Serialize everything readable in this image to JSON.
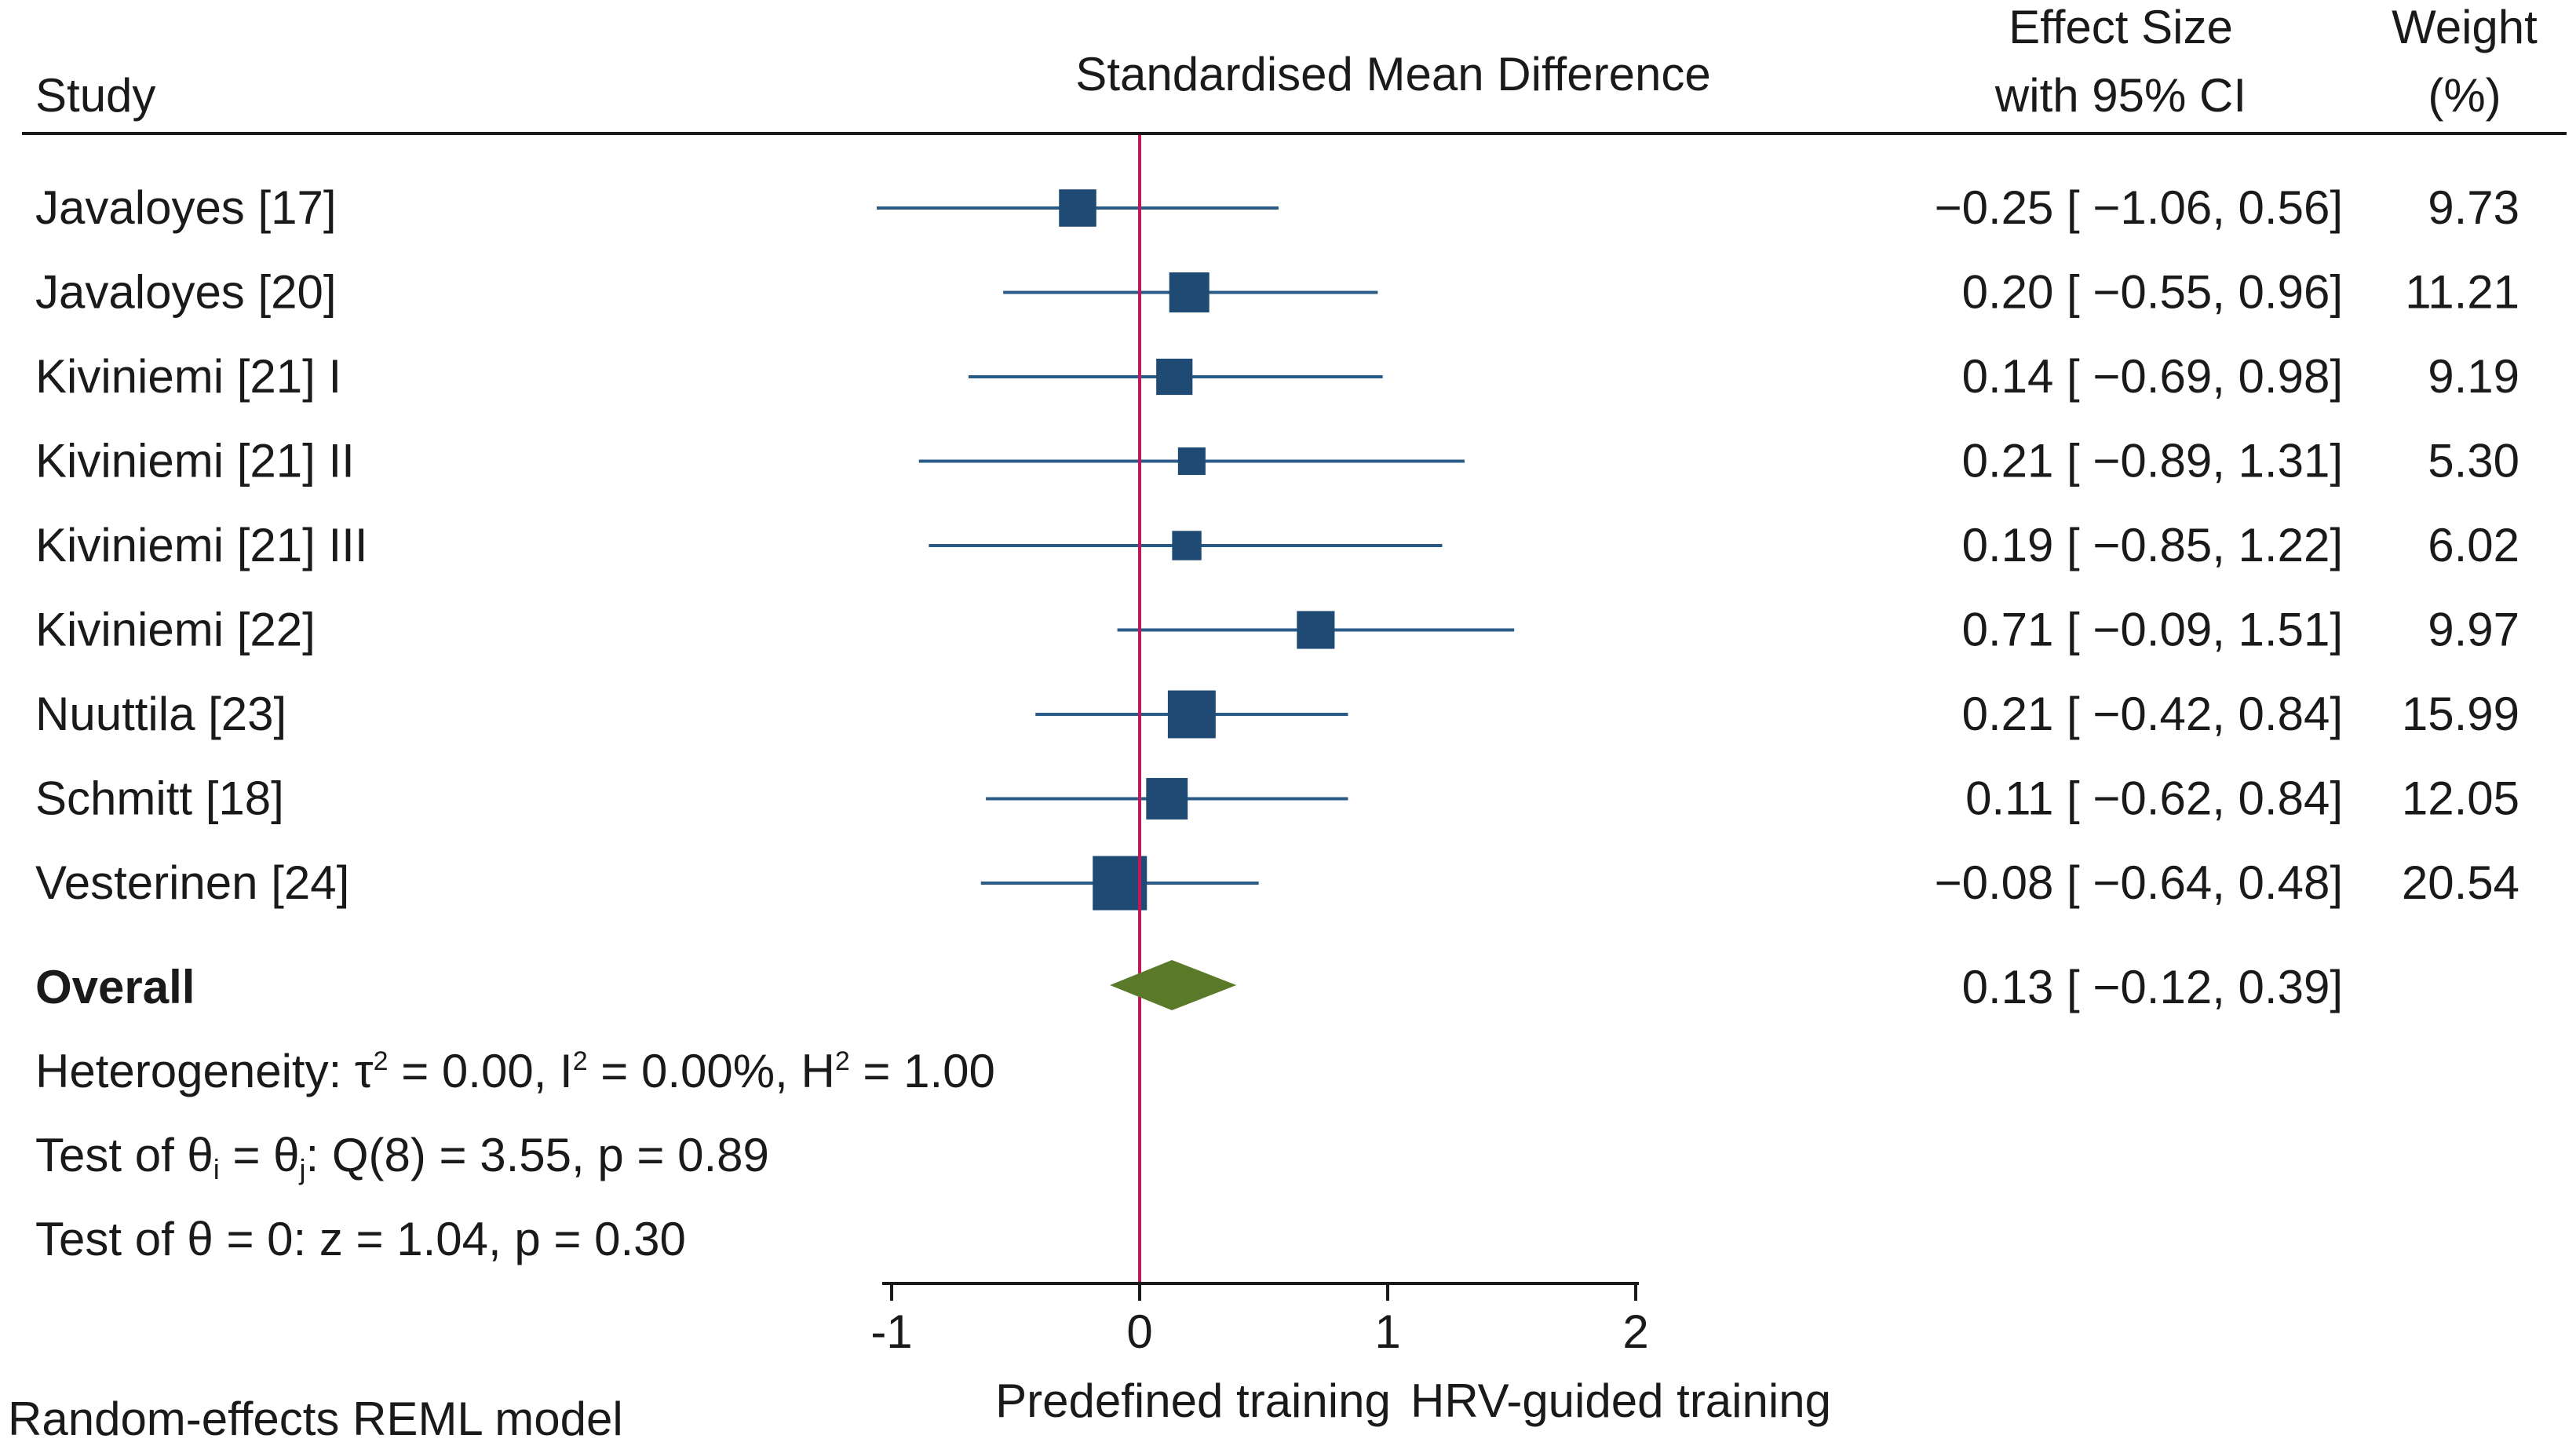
{
  "chart_data": {
    "type": "forest",
    "title": "Standardised Mean Difference",
    "headers": {
      "study": "Study",
      "effect_line1": "Effect Size",
      "effect_line2": "with 95% CI",
      "weight_line1": "Weight",
      "weight_line2": "(%)"
    },
    "studies": [
      {
        "name": "Javaloyes [17]",
        "es": -0.25,
        "lo": -1.06,
        "hi": 0.56,
        "weight": 9.73,
        "ci_text": "−0.25 [ −1.06,  0.56]",
        "weight_text": "9.73"
      },
      {
        "name": "Javaloyes [20]",
        "es": 0.2,
        "lo": -0.55,
        "hi": 0.96,
        "weight": 11.21,
        "ci_text": "0.20 [ −0.55,  0.96]",
        "weight_text": "11.21"
      },
      {
        "name": "Kiviniemi [21] I",
        "es": 0.14,
        "lo": -0.69,
        "hi": 0.98,
        "weight": 9.19,
        "ci_text": "0.14 [ −0.69,  0.98]",
        "weight_text": "9.19"
      },
      {
        "name": "Kiviniemi [21] II",
        "es": 0.21,
        "lo": -0.89,
        "hi": 1.31,
        "weight": 5.3,
        "ci_text": "0.21 [ −0.89,  1.31]",
        "weight_text": "5.30"
      },
      {
        "name": "Kiviniemi [21] III",
        "es": 0.19,
        "lo": -0.85,
        "hi": 1.22,
        "weight": 6.02,
        "ci_text": "0.19 [ −0.85,  1.22]",
        "weight_text": "6.02"
      },
      {
        "name": "Kiviniemi [22]",
        "es": 0.71,
        "lo": -0.09,
        "hi": 1.51,
        "weight": 9.97,
        "ci_text": "0.71 [ −0.09,  1.51]",
        "weight_text": "9.97"
      },
      {
        "name": "Nuuttila [23]",
        "es": 0.21,
        "lo": -0.42,
        "hi": 0.84,
        "weight": 15.99,
        "ci_text": "0.21 [ −0.42,  0.84]",
        "weight_text": "15.99"
      },
      {
        "name": "Schmitt [18]",
        "es": 0.11,
        "lo": -0.62,
        "hi": 0.84,
        "weight": 12.05,
        "ci_text": "0.11 [ −0.62,  0.84]",
        "weight_text": "12.05"
      },
      {
        "name": "Vesterinen [24]",
        "es": -0.08,
        "lo": -0.64,
        "hi": 0.48,
        "weight": 20.54,
        "ci_text": "−0.08 [ −0.64,  0.48]",
        "weight_text": "20.54"
      }
    ],
    "overall": {
      "label": "Overall",
      "es": 0.13,
      "lo": -0.12,
      "hi": 0.39,
      "ci_text": "0.13 [ −0.12,  0.39]"
    },
    "heterogeneity": {
      "prefix": "Heterogeneity: τ",
      "tau_sup": "2",
      "tau_rest": " = 0.00, I",
      "i_sup": "2",
      "i_rest": " = 0.00%, H",
      "h_sup": "2",
      "h_rest": " = 1.00"
    },
    "test_equal": {
      "prefix": "Test of θ",
      "sub_i": "i",
      "mid": " = θ",
      "sub_j": "j",
      "rest": ": Q(8) = 3.55, p = 0.89"
    },
    "test_zero": "Test of θ = 0: z = 1.04, p = 0.30",
    "axis": {
      "xlim": [
        -1,
        2
      ],
      "ticks": [
        -1,
        0,
        1,
        2
      ],
      "tick_labels": [
        "-1",
        "0",
        "1",
        "2"
      ],
      "null_line": 0,
      "left_label": "Predefined training",
      "right_label": "HRV-guided training"
    },
    "model_note": "Random-effects REML model",
    "colors": {
      "marker": "#1f4a73",
      "ci_line": "#2a5b86",
      "diamond": "#5a7a2a",
      "null_line": "#c2185b",
      "text": "#1a1a1a",
      "rule": "#1a1a1a"
    }
  }
}
